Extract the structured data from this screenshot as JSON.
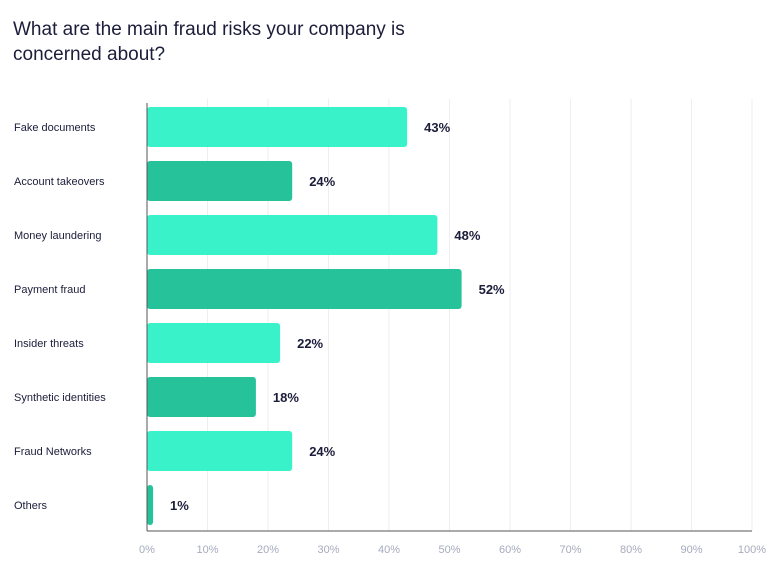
{
  "chart_data": {
    "type": "bar",
    "orientation": "horizontal",
    "title": "What are the main fraud risks your company is concerned about?",
    "categories": [
      "Fake documents",
      "Account takeovers",
      "Money laundering",
      "Payment fraud",
      "Insider threats",
      "Synthetic identities",
      "Fraud Networks",
      "Others"
    ],
    "values": [
      43,
      24,
      48,
      52,
      22,
      18,
      24,
      1
    ],
    "data_labels": [
      "43%",
      "24%",
      "48%",
      "52%",
      "22%",
      "18%",
      "24%",
      "1%"
    ],
    "xlim": [
      0,
      100
    ],
    "x_ticks": [
      "0%",
      "10%",
      "20%",
      "30%",
      "40%",
      "50%",
      "60%",
      "70%",
      "80%",
      "90%",
      "100%"
    ],
    "xlabel": "",
    "ylabel": "",
    "grid": true,
    "colors": {
      "light": "#3af2c9",
      "dark": "#26c29a",
      "text": "#1b1d3a",
      "tick": "#a6abbd",
      "grid": "#eeeeee",
      "axis": "#555555"
    }
  }
}
